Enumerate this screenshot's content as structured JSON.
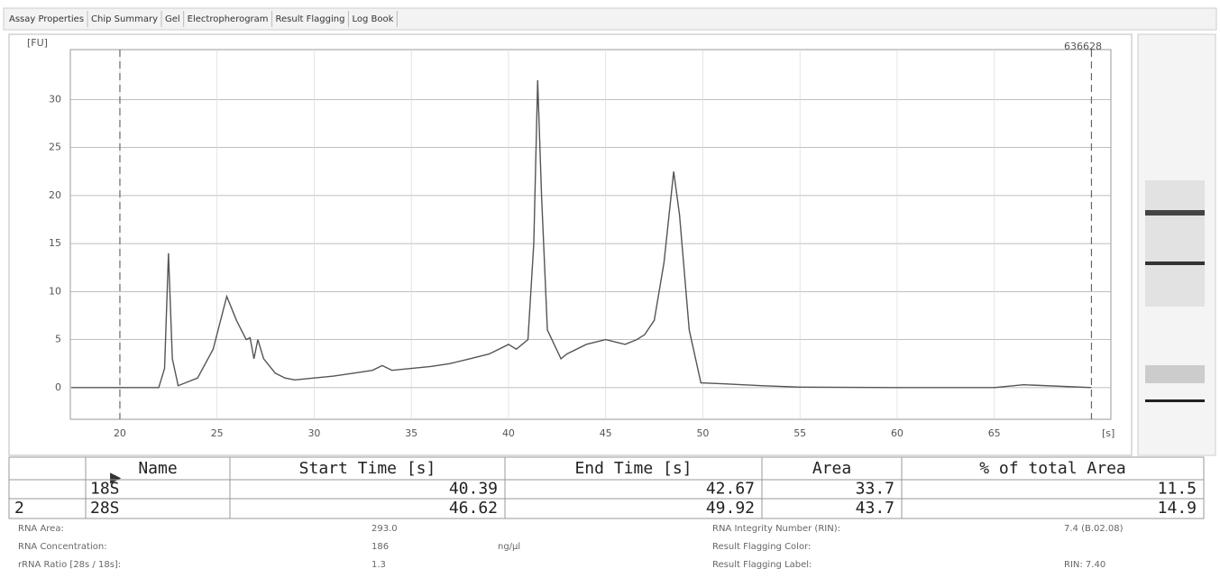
{
  "tabs": [
    "Assay Properties",
    "Chip Summary",
    "Gel",
    "Electropherogram",
    "Result Flagging",
    "Log Book"
  ],
  "chart_data": {
    "type": "line",
    "y_label": "[FU]",
    "x_label": "[s]",
    "annotation": "636628",
    "x": [
      17.5,
      20,
      22,
      22.3,
      22.5,
      22.7,
      23,
      24,
      24.8,
      25.5,
      26,
      26.5,
      26.7,
      26.9,
      27.1,
      27.4,
      28,
      28.5,
      29,
      30,
      31,
      32,
      33,
      33.5,
      34,
      35,
      36,
      37,
      38,
      39,
      40,
      40.4,
      41,
      41.3,
      41.5,
      41.7,
      42,
      42.7,
      43,
      44,
      45,
      46,
      46.6,
      47,
      47.5,
      48,
      48.5,
      48.8,
      49.3,
      49.9,
      51,
      53,
      55,
      60,
      65,
      66.5,
      70
    ],
    "series": [
      {
        "name": "Electropherogram",
        "color": "#555555",
        "values": [
          0,
          0,
          0,
          2,
          14,
          3,
          0.2,
          1,
          4,
          9.5,
          7,
          5,
          5.2,
          3,
          5,
          3,
          1.5,
          1,
          0.8,
          1,
          1.2,
          1.5,
          1.8,
          2.3,
          1.8,
          2,
          2.2,
          2.5,
          3,
          3.5,
          4.5,
          4,
          5,
          15,
          32,
          20,
          6,
          3,
          3.5,
          4.5,
          5,
          4.5,
          5,
          5.5,
          7,
          13,
          22.5,
          18,
          6,
          0.5,
          0.4,
          0.2,
          0.05,
          0,
          0,
          0.3,
          0
        ]
      }
    ],
    "marker_lines": [
      20,
      70
    ],
    "xlim": [
      17.45,
      71
    ],
    "ylim": [
      -3.3,
      35.2
    ],
    "xticks": [
      20,
      25,
      30,
      35,
      40,
      45,
      50,
      55,
      60,
      65
    ],
    "yticks": [
      0,
      5,
      10,
      15,
      20,
      25,
      30
    ],
    "grid": true
  },
  "table": {
    "headers": [
      "Name",
      "Start Time [s]",
      "End Time [s]",
      "Area",
      "% of total Area"
    ],
    "rows": [
      {
        "name": "18S",
        "cells": [
          40.39,
          42.67,
          33.7,
          11.5
        ]
      },
      {
        "index": "2",
        "name": "28S",
        "cells": [
          46.62,
          49.92,
          43.7,
          14.9
        ]
      }
    ]
  },
  "summary": [
    {
      "label": "RNA Area:",
      "value": "293.0"
    },
    {
      "label": "RNA Concentration:",
      "value": "186",
      "unit": "ng/µl"
    },
    {
      "label": "rRNA Ratio [28s / 18s]:",
      "value": "1.3"
    },
    {
      "label": "RNA Integrity Number (RIN):",
      "value": "7.4 (B.02.08)"
    },
    {
      "label": "Result Flagging Color:"
    },
    {
      "label": "Result Flagging Label:",
      "value": "RIN: 7.40"
    }
  ]
}
